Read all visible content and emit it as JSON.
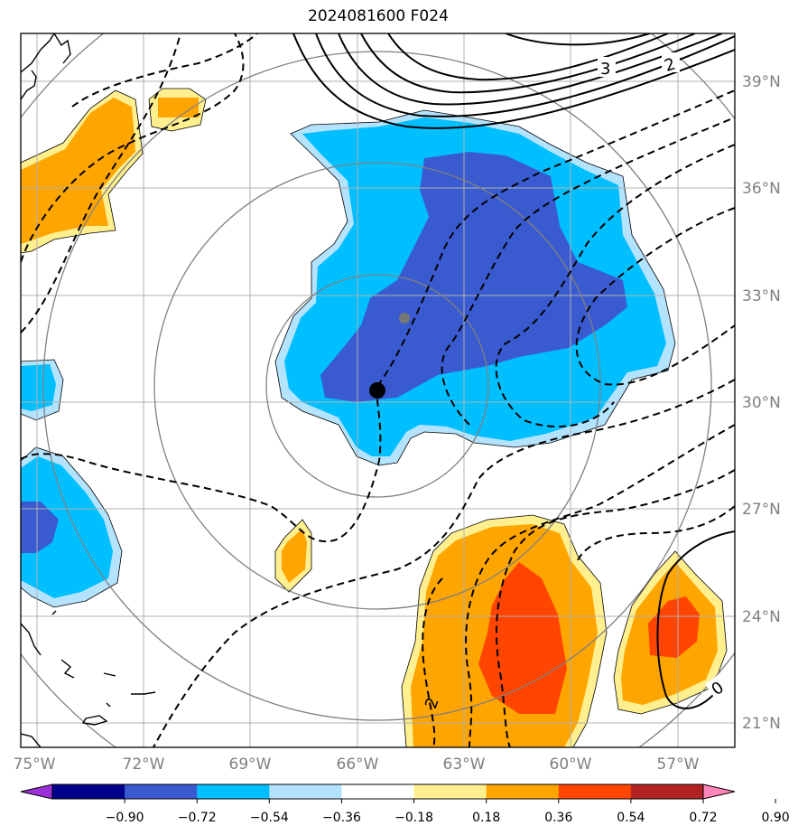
{
  "title": "2024081600 F024",
  "map": {
    "lat_labels": [
      "39°N",
      "36°N",
      "33°N",
      "30°N",
      "27°N",
      "24°N",
      "21°N"
    ],
    "lon_labels": [
      "75°W",
      "72°W",
      "69°W",
      "66°W",
      "63°W",
      "60°W",
      "57°W"
    ],
    "contour_labels": [
      "3",
      "2",
      "0",
      "2"
    ],
    "storm_center": {
      "lat": 30.3,
      "lon": -65.5
    },
    "previous_center": {
      "lat": 32.3,
      "lon": -64.7
    },
    "colors": {
      "strong_negative": "#3a5bd0",
      "negative": "#00bfff",
      "weak_negative": "#b3e3ff",
      "weak_positive": "#ffef8f",
      "positive": "#ffa500",
      "strong_positive": "#ff4500",
      "grid": "#b0b0b0",
      "range_rings": "#808080"
    }
  },
  "colorbar": {
    "ticks": [
      "−0.90",
      "−0.72",
      "−0.54",
      "−0.36",
      "−0.18",
      "0.18",
      "0.36",
      "0.54",
      "0.72",
      "0.90"
    ],
    "colors": [
      "#9b30d9",
      "#00008b",
      "#3a5bd0",
      "#00bfff",
      "#b3e3ff",
      "#ffffff",
      "#ffef8f",
      "#ffa500",
      "#ff4500",
      "#b22222",
      "#ff85b8"
    ]
  }
}
